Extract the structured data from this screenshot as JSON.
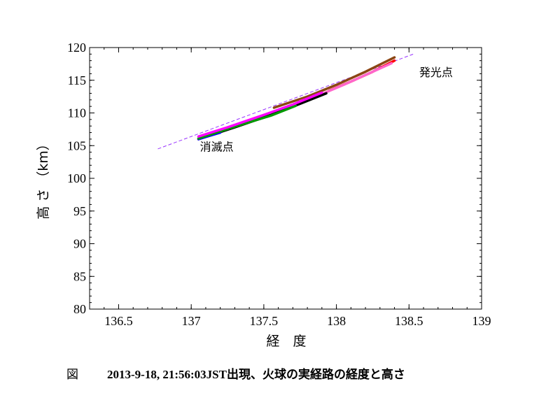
{
  "chart_data": {
    "type": "scatter",
    "xlabel": "経　度",
    "ylabel": "高 さ （km）",
    "xlim": [
      136.3,
      139
    ],
    "ylim": [
      80,
      120
    ],
    "x_ticks": [
      136.5,
      137,
      137.5,
      138,
      138.5,
      139
    ],
    "x_tick_labels": [
      "136.5",
      "137",
      "137.5",
      "138",
      "138.5",
      "139"
    ],
    "y_ticks": [
      80,
      85,
      90,
      95,
      100,
      105,
      110,
      115,
      120
    ],
    "y_tick_labels": [
      "80",
      "85",
      "90",
      "95",
      "100",
      "105",
      "110",
      "115",
      "120"
    ],
    "grid": false,
    "annotations": [
      {
        "text": "発光点",
        "x": 138.57,
        "y": 115.6
      },
      {
        "text": "消滅点",
        "x": 137.06,
        "y": 104.2
      }
    ],
    "series": [
      {
        "color": "#8b4513",
        "x": [
          137.57,
          137.8,
          138.0,
          138.2,
          138.4
        ],
        "y": [
          110.8,
          112.5,
          114.3,
          116.3,
          118.5
        ]
      },
      {
        "color": "#ff0000",
        "x": [
          137.95,
          138.1,
          138.25,
          138.4
        ],
        "y": [
          113.4,
          114.8,
          116.3,
          118.0
        ]
      },
      {
        "color": "#ff66cc",
        "x": [
          137.75,
          137.9,
          138.05,
          138.2,
          138.38
        ],
        "y": [
          111.8,
          112.9,
          114.3,
          115.8,
          117.6
        ]
      },
      {
        "color": "#000000",
        "x": [
          137.05,
          137.3,
          137.55,
          137.75,
          137.93
        ],
        "y": [
          106.0,
          107.8,
          109.7,
          111.4,
          113.0
        ]
      },
      {
        "color": "#0000ff",
        "x": [
          137.05,
          137.2
        ],
        "y": [
          106.0,
          107.0
        ]
      },
      {
        "color": "#009900",
        "x": [
          137.05,
          137.3,
          137.55,
          137.72
        ],
        "y": [
          106.1,
          107.9,
          109.6,
          111.1
        ]
      },
      {
        "color": "#ff00ff",
        "x": [
          137.05,
          137.25,
          137.5,
          137.7,
          137.9
        ],
        "y": [
          106.4,
          107.8,
          109.7,
          111.3,
          113.1
        ]
      }
    ],
    "fit_line": {
      "color": "#9933ff",
      "style": "dashed",
      "x": [
        136.77,
        138.53
      ],
      "y": [
        104.5,
        119.0
      ]
    }
  },
  "caption": {
    "fig_label": "図",
    "text": "2013-9-18, 21:56:03JST出現、火球の実経路の経度と高さ"
  }
}
